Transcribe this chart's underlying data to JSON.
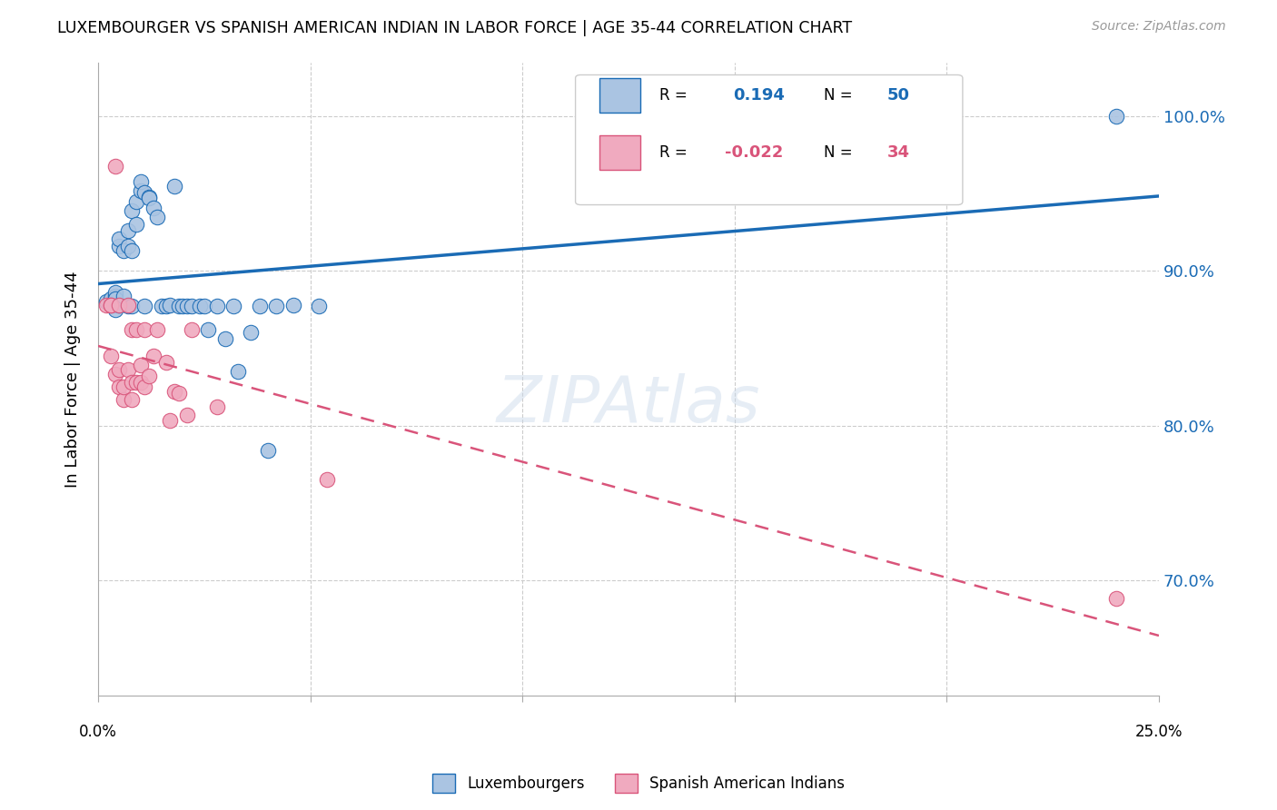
{
  "title": "LUXEMBOURGER VS SPANISH AMERICAN INDIAN IN LABOR FORCE | AGE 35-44 CORRELATION CHART",
  "source": "Source: ZipAtlas.com",
  "ylabel": "In Labor Force | Age 35-44",
  "ytick_vals": [
    0.7,
    0.8,
    0.9,
    1.0
  ],
  "ytick_labels": [
    "70.0%",
    "80.0%",
    "90.0%",
    "100.0%"
  ],
  "xlim": [
    0.0,
    0.25
  ],
  "ylim": [
    0.625,
    1.035
  ],
  "legend_blue_R_val": "0.194",
  "legend_blue_N_val": "50",
  "legend_pink_R_val": "-0.022",
  "legend_pink_N_val": "34",
  "legend_label_blue": "Luxembourgers",
  "legend_label_pink": "Spanish American Indians",
  "blue_color": "#aac4e2",
  "blue_line_color": "#1a6bb5",
  "pink_color": "#f0aabf",
  "pink_line_color": "#d9547a",
  "watermark": "ZIPAtlas",
  "blue_x": [
    0.002,
    0.003,
    0.003,
    0.004,
    0.004,
    0.004,
    0.004,
    0.005,
    0.005,
    0.005,
    0.006,
    0.006,
    0.007,
    0.007,
    0.007,
    0.008,
    0.008,
    0.008,
    0.009,
    0.009,
    0.01,
    0.01,
    0.011,
    0.011,
    0.012,
    0.012,
    0.013,
    0.014,
    0.015,
    0.016,
    0.017,
    0.018,
    0.019,
    0.02,
    0.021,
    0.022,
    0.024,
    0.025,
    0.026,
    0.028,
    0.03,
    0.032,
    0.033,
    0.036,
    0.038,
    0.04,
    0.042,
    0.046,
    0.052,
    0.24
  ],
  "blue_y": [
    0.88,
    0.878,
    0.882,
    0.884,
    0.886,
    0.882,
    0.875,
    0.878,
    0.916,
    0.921,
    0.884,
    0.913,
    0.877,
    0.926,
    0.916,
    0.939,
    0.877,
    0.913,
    0.945,
    0.93,
    0.952,
    0.958,
    0.877,
    0.951,
    0.948,
    0.947,
    0.941,
    0.935,
    0.877,
    0.877,
    0.878,
    0.955,
    0.877,
    0.877,
    0.877,
    0.877,
    0.877,
    0.877,
    0.862,
    0.877,
    0.856,
    0.877,
    0.835,
    0.86,
    0.877,
    0.784,
    0.877,
    0.878,
    0.877,
    1.0
  ],
  "pink_x": [
    0.002,
    0.003,
    0.003,
    0.003,
    0.004,
    0.004,
    0.005,
    0.005,
    0.005,
    0.006,
    0.006,
    0.007,
    0.007,
    0.008,
    0.008,
    0.008,
    0.009,
    0.009,
    0.01,
    0.01,
    0.011,
    0.011,
    0.012,
    0.013,
    0.014,
    0.016,
    0.017,
    0.018,
    0.019,
    0.021,
    0.022,
    0.028,
    0.054,
    0.24
  ],
  "pink_y": [
    0.878,
    0.845,
    0.878,
    0.878,
    0.833,
    0.968,
    0.878,
    0.836,
    0.825,
    0.817,
    0.825,
    0.878,
    0.836,
    0.862,
    0.828,
    0.817,
    0.828,
    0.862,
    0.839,
    0.828,
    0.862,
    0.825,
    0.832,
    0.845,
    0.862,
    0.841,
    0.803,
    0.822,
    0.821,
    0.807,
    0.862,
    0.812,
    0.765,
    0.688
  ]
}
